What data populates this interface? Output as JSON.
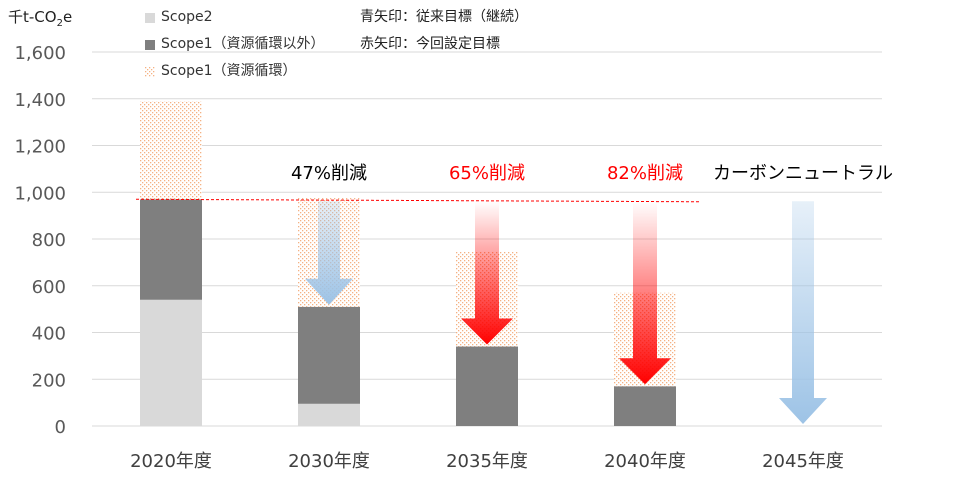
{
  "unit_label": {
    "prefix": "千t-CO",
    "sub": "2",
    "suffix": "e"
  },
  "legend": [
    {
      "label": "Scope2",
      "color": "#d9d9d9",
      "pattern": false
    },
    {
      "label": "Scope1（資源循環以外）",
      "color": "#7f7f7f",
      "pattern": false
    },
    {
      "label": "Scope1（資源循環）",
      "color": "#f4b183",
      "pattern": true
    }
  ],
  "notes": {
    "blue": "青矢印：従来目標（継続）",
    "red": "赤矢印：今回設定目標"
  },
  "colors": {
    "scope2": "#d9d9d9",
    "scope1_other": "#7f7f7f",
    "scope1_recycle": "#f4b183",
    "blue_arrow": "#9dc3e6",
    "red_arrow": "#ff0000",
    "dashed_line": "#ff0000"
  },
  "chart_data": {
    "type": "bar",
    "stacked": true,
    "categories": [
      "2020年度",
      "2030年度",
      "2035年度",
      "2040年度",
      "2045年度"
    ],
    "series": [
      {
        "name": "Scope2",
        "values": [
          540,
          95,
          0,
          0,
          0
        ]
      },
      {
        "name": "Scope1（資源循環以外）",
        "values": [
          430,
          415,
          340,
          170,
          0
        ]
      },
      {
        "name": "Scope1（資源循環）",
        "values": [
          420,
          465,
          405,
          400,
          0
        ]
      }
    ],
    "ylim": [
      0,
      1600
    ],
    "yticks": [
      "0",
      "200",
      "400",
      "600",
      "800",
      "1,000",
      "1,200",
      "1,400",
      "1,600"
    ],
    "grid": true,
    "reference_line": {
      "value": 970,
      "style": "dashed",
      "color": "red"
    },
    "annotations": [
      {
        "category": "2030年度",
        "text": "47%削減",
        "color": "black",
        "arrow": "blue",
        "arrow_from": 970,
        "arrow_to": 510
      },
      {
        "category": "2035年度",
        "text": "65%削減",
        "color": "red",
        "arrow": "red",
        "arrow_from": 970,
        "arrow_to": 340
      },
      {
        "category": "2040年度",
        "text": "82%削減",
        "color": "red",
        "arrow": "red",
        "arrow_from": 970,
        "arrow_to": 170
      },
      {
        "category": "2045年度",
        "text": "カーボンニュートラル",
        "color": "black",
        "arrow": "blue",
        "arrow_from": 970,
        "arrow_to": 0
      }
    ]
  }
}
